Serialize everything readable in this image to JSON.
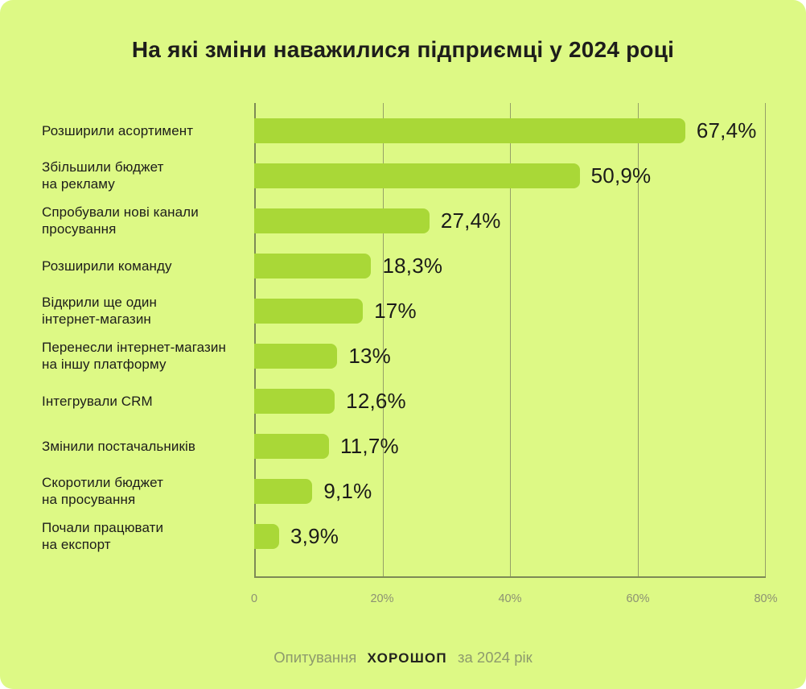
{
  "title": "На які зміни наважилися підприємці у 2024 році",
  "chart_data": {
    "type": "bar",
    "orientation": "horizontal",
    "categories": [
      [
        "Розширили асортимент"
      ],
      [
        "Збільшили бюджет",
        "на рекламу"
      ],
      [
        "Спробували нові канали",
        "просування"
      ],
      [
        "Розширили команду"
      ],
      [
        "Відкрили ще один",
        "інтернет-магазин"
      ],
      [
        "Перенесли інтернет-магазин",
        "на іншу платформу"
      ],
      [
        "Інтегрували CRM"
      ],
      [
        "Змінили постачальників"
      ],
      [
        "Скоротили бюджет",
        "на просування"
      ],
      [
        "Почали працювати",
        "на експорт"
      ]
    ],
    "values": [
      67.4,
      50.9,
      27.4,
      18.3,
      17,
      13,
      12.6,
      11.7,
      9.1,
      3.9
    ],
    "value_labels": [
      "67,4%",
      "50,9%",
      "27,4%",
      "18,3%",
      "17%",
      "13%",
      "12,6%",
      "11,7%",
      "9,1%",
      "3,9%"
    ],
    "xlim": [
      0,
      80
    ],
    "x_ticks": [
      {
        "label": "0",
        "pct": 0
      },
      {
        "label": "20%",
        "pct": 25
      },
      {
        "label": "40%",
        "pct": 50
      },
      {
        "label": "60%",
        "pct": 75
      },
      {
        "label": "80%",
        "pct": 100
      }
    ],
    "grid": "vertical",
    "legend": "none",
    "bar_color": "#a9d837",
    "background_color": "#ddf985",
    "text_color": "#1d1d1b",
    "muted_color": "#8c9173",
    "axis_color": "#7d8a55"
  },
  "footer": {
    "prefix": "Опитування",
    "brand": "хорошоп",
    "suffix": "за 2024 рік"
  }
}
